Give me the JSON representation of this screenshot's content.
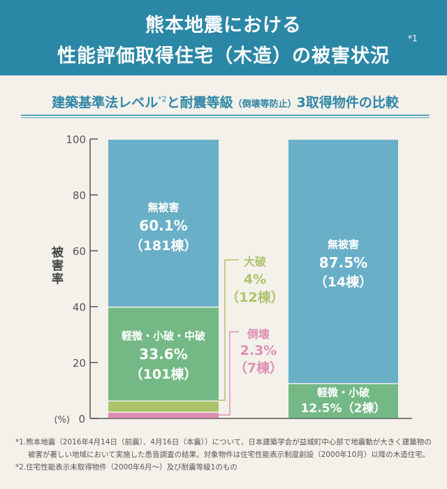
{
  "header": {
    "line1": "熊本地震における",
    "line2": "性能評価取得住宅（木造）の被害状況",
    "note_mark": "*1"
  },
  "subtitle": {
    "part1": "建築基準法レベル",
    "mark": "*2",
    "part2": "と耐震等級",
    "paren": "（倒壊等防止）",
    "part3": "3取得物件の比較"
  },
  "chart_data": {
    "type": "bar",
    "stacked": true,
    "ylabel": "被害率",
    "yunit": "(%)",
    "ylim": [
      0,
      100
    ],
    "yticks": [
      0,
      20,
      40,
      60,
      80,
      100
    ],
    "colors": {
      "no_damage": "#6aafc8",
      "minor": "#74b985",
      "major": "#aec36c",
      "collapse": "#de8fb5"
    },
    "bars": [
      {
        "segments": [
          {
            "key": "collapse",
            "label": "倒壊",
            "value": 2.3,
            "pct": "2.3%",
            "count": "（7棟）"
          },
          {
            "key": "major",
            "label": "大破",
            "value": 4,
            "pct": "4%",
            "count": "（12棟）"
          },
          {
            "key": "minor",
            "label": "軽微・小破・中破",
            "value": 33.6,
            "pct": "33.6%",
            "count": "（101棟）"
          },
          {
            "key": "no_damage",
            "label": "無被害",
            "value": 60.1,
            "pct": "60.1%",
            "count": "（181棟）"
          }
        ]
      },
      {
        "segments": [
          {
            "key": "minor",
            "label": "軽微・小破",
            "value": 12.5,
            "pct": "12.5%",
            "count": "（2棟）"
          },
          {
            "key": "no_damage",
            "label": "無被害",
            "value": 87.5,
            "pct": "87.5%",
            "count": "（14棟）"
          }
        ]
      }
    ]
  },
  "footnotes": [
    "*1.熊本地震（2016年4月14日（前震）、4月16日（本震））について、日本建築学会が益城町中心部で地震動が大きく建築物の",
    "被害が著しい地域において実施した悉皆調査の結果。対象物件は住宅性能表示制度創設（2000年10月）以降の木造住宅。",
    "*2.住宅性能表示未取得物件（2000年6月〜）及び耐震等級1のもの"
  ]
}
